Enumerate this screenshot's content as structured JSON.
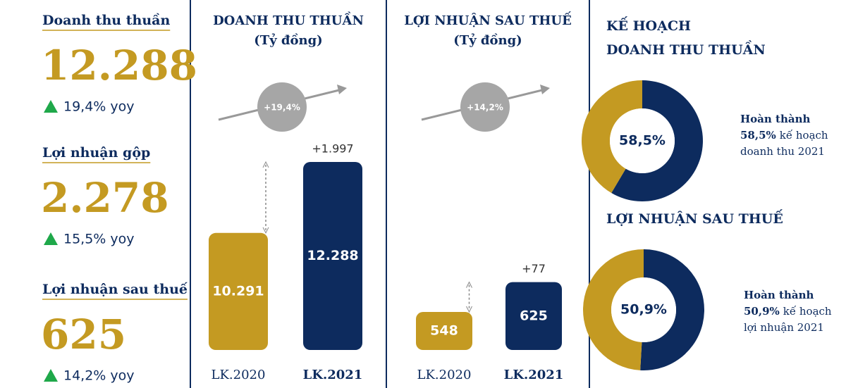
{
  "kpis": [
    {
      "label": "Doanh thu thuần",
      "value": "12.288",
      "change": "19,4% yoy"
    },
    {
      "label": "Lợi nhuận gộp",
      "value": "2.278",
      "change": "15,5% yoy"
    },
    {
      "label": "Lợi nhuận sau thuế",
      "value": "625",
      "change": "14,2% yoy"
    }
  ],
  "plan_header": "KẾ HOẠCH",
  "chart_data": [
    {
      "type": "bar",
      "title": "DOANH THU THUẦN",
      "subtitle": "(Tỷ đồng)",
      "categories": [
        "LK.2020",
        "LK.2021"
      ],
      "values": [
        10291,
        12288
      ],
      "value_labels": [
        "10.291",
        "12.288"
      ],
      "colors": [
        "#c49a22",
        "#0d2b5e"
      ],
      "ylim": [
        7000,
        13000
      ],
      "growth_label": "+19,4%",
      "difference_label": "+1.997"
    },
    {
      "type": "bar",
      "title": "LỢI NHUẬN SAU THUẾ",
      "subtitle": "(Tỷ đồng)",
      "categories": [
        "LK.2020",
        "LK.2021"
      ],
      "values": [
        548,
        625
      ],
      "value_labels": [
        "548",
        "625"
      ],
      "colors": [
        "#c49a22",
        "#0d2b5e"
      ],
      "ylim": [
        450,
        1000
      ],
      "growth_label": "+14,2%",
      "difference_label": "+77"
    },
    {
      "type": "pie",
      "title": "DOANH THU THUẦN",
      "values": [
        58.5,
        41.5
      ],
      "colors": [
        "#0d2b5e",
        "#c49a22"
      ],
      "center_label": "58,5%",
      "note": [
        "Hoàn thành",
        "58,5%",
        "kế hoạch",
        "doanh thu 2021"
      ]
    },
    {
      "type": "pie",
      "title": "LỢI NHUẬN SAU THUẾ",
      "values": [
        50.9,
        49.1
      ],
      "colors": [
        "#0d2b5e",
        "#c49a22"
      ],
      "center_label": "50,9%",
      "note": [
        "Hoàn thành",
        "50,9%",
        "kế hoạch",
        "lợi nhuận 2021"
      ]
    }
  ]
}
